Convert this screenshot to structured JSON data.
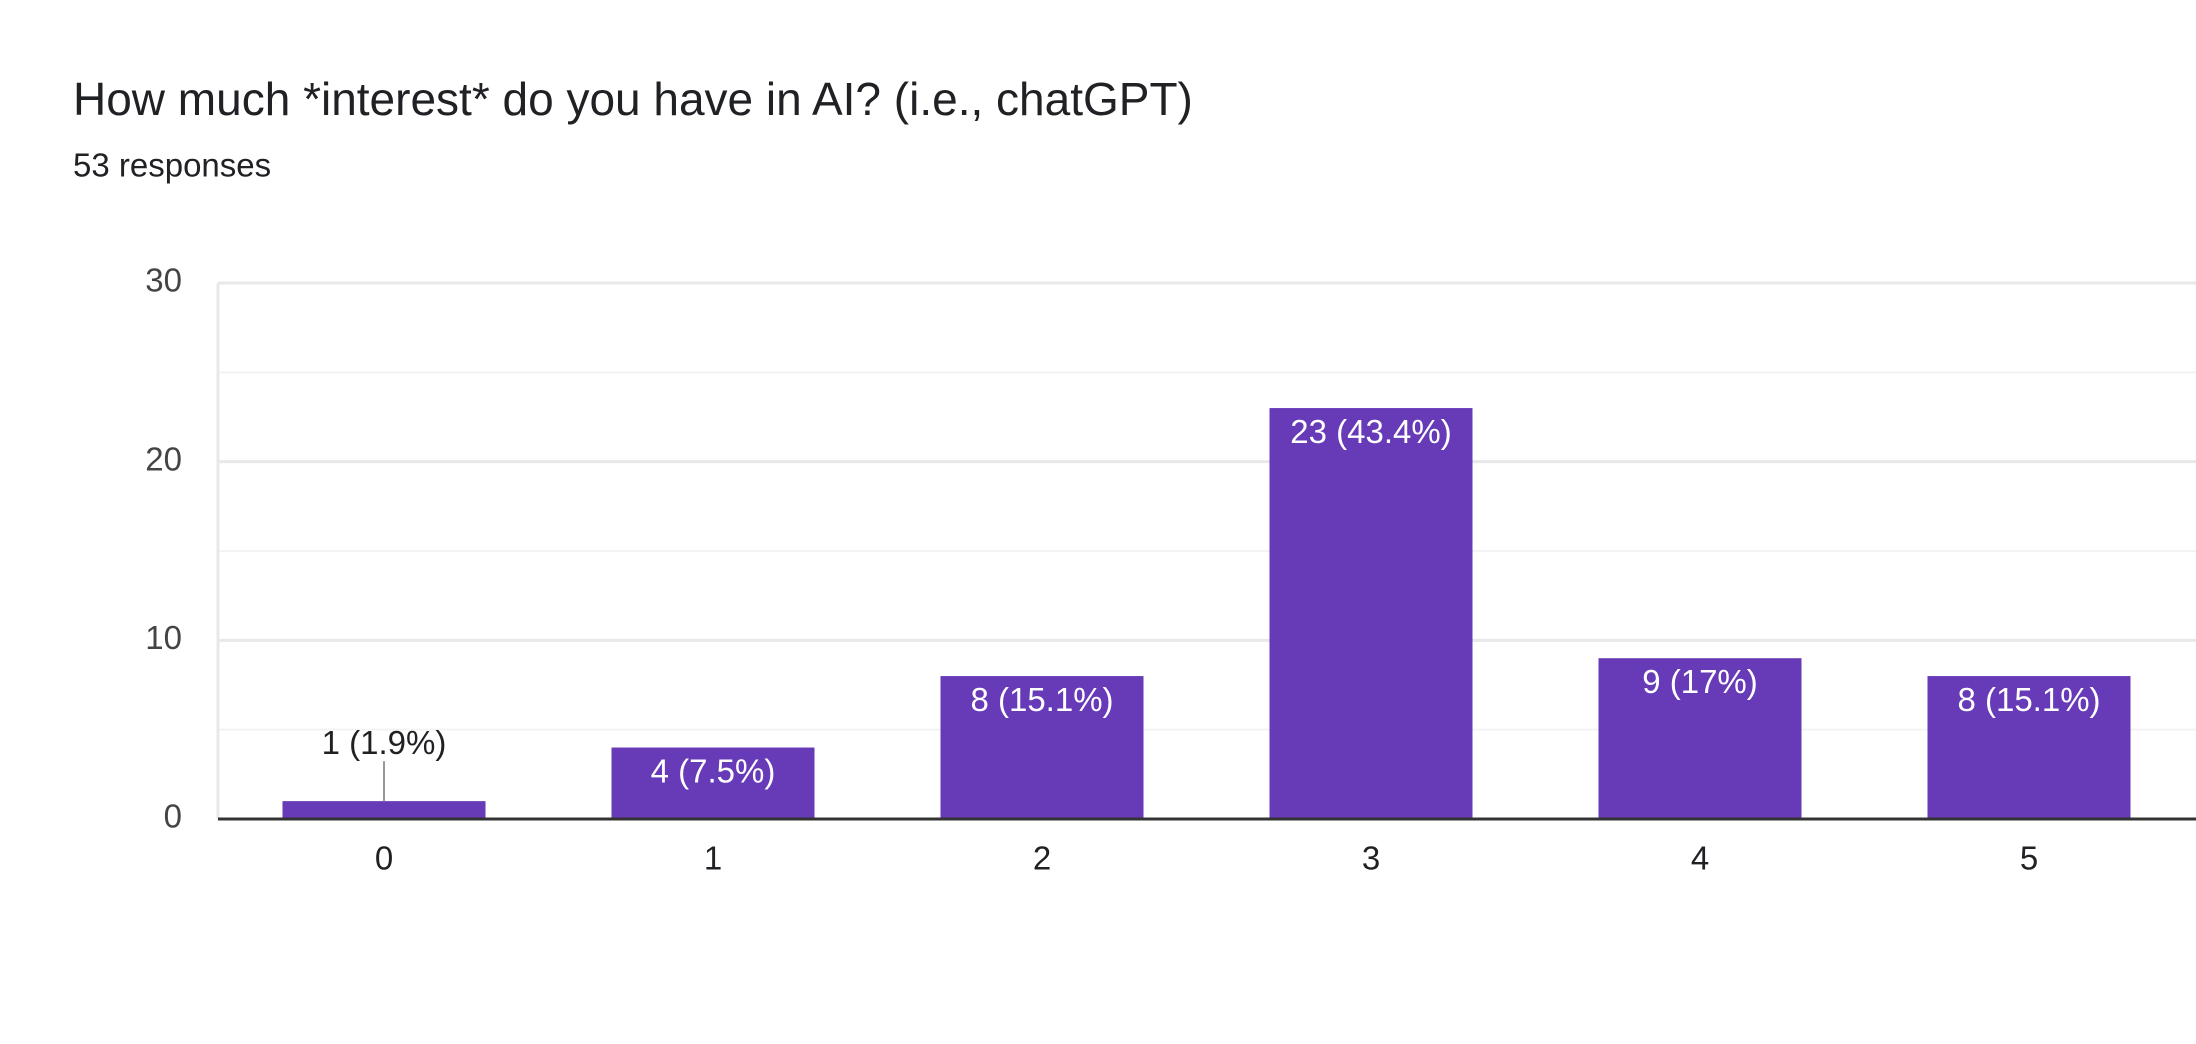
{
  "chart_data": {
    "type": "bar",
    "title": "How much *interest* do you have in AI? (i.e., chatGPT)",
    "subtitle": "53 responses",
    "categories": [
      "0",
      "1",
      "2",
      "3",
      "4",
      "5"
    ],
    "values": [
      1,
      4,
      8,
      23,
      9,
      8
    ],
    "value_labels": [
      "1 (1.9%)",
      "4 (7.5%)",
      "8 (15.1%)",
      "23 (43.4%)",
      "9 (17%)",
      "8 (15.1%)"
    ],
    "color": "#673ab7",
    "ylim": [
      0,
      30
    ],
    "yticks": [
      0,
      10,
      20,
      30
    ],
    "minor_yticks": [
      5,
      15,
      25
    ],
    "grid": true
  }
}
